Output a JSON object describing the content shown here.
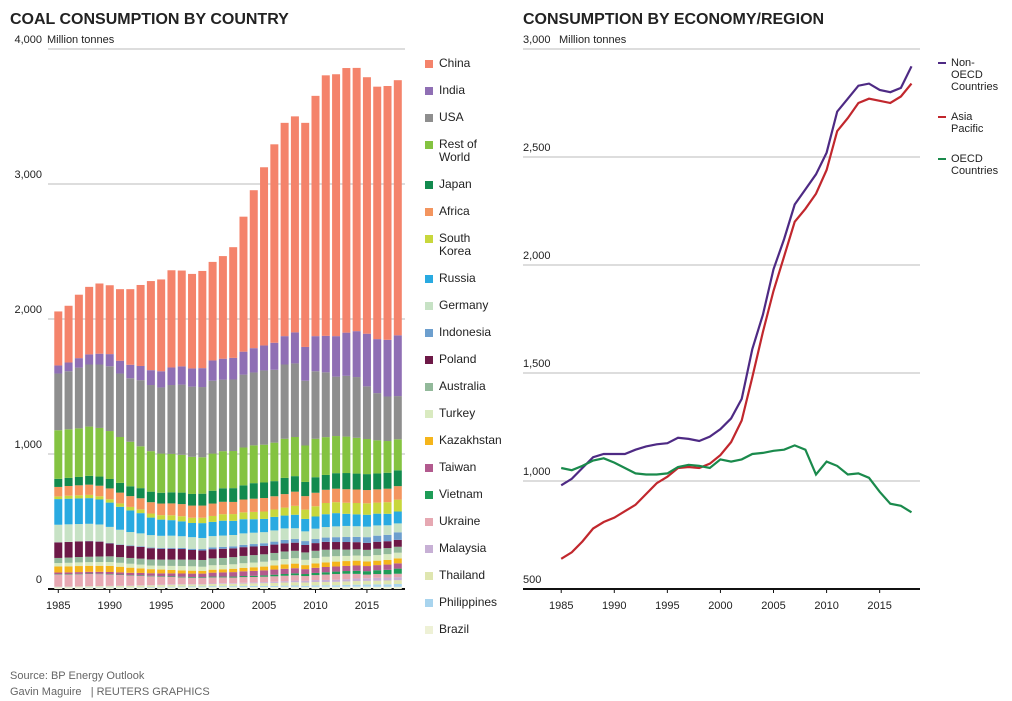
{
  "chart_data": [
    {
      "type": "bar",
      "stacked": true,
      "title": "COAL CONSUMPTION BY COUNTRY",
      "y_label": "Million tonnes",
      "x": [
        1985,
        1986,
        1987,
        1988,
        1989,
        1990,
        1991,
        1992,
        1993,
        1994,
        1995,
        1996,
        1997,
        1998,
        1999,
        2000,
        2001,
        2002,
        2003,
        2004,
        2005,
        2006,
        2007,
        2008,
        2009,
        2010,
        2011,
        2012,
        2013,
        2014,
        2015,
        2016,
        2017,
        2018
      ],
      "xlim": [
        1984,
        2018.7
      ],
      "xticks": [
        1985,
        1990,
        1995,
        2000,
        2005,
        2010,
        2015
      ],
      "ylim": [
        0,
        4000
      ],
      "yticks": [
        0,
        {
          "value": 1000,
          "label": "1,000"
        },
        {
          "value": 2000,
          "label": "2,000"
        },
        {
          "value": 3000,
          "label": "3,000"
        },
        {
          "value": 4000,
          "label": "4,000"
        }
      ],
      "grid": true,
      "series": [
        {
          "name": "China",
          "color": "#f4836b",
          "values": [
            400,
            420,
            470,
            500,
            520,
            510,
            530,
            560,
            600,
            660,
            680,
            720,
            710,
            700,
            720,
            730,
            760,
            820,
            1000,
            1170,
            1320,
            1470,
            1580,
            1600,
            1660,
            1780,
            1930,
            1940,
            1960,
            1950,
            1900,
            1870,
            1880,
            1890
          ]
        },
        {
          "name": "India",
          "color": "#8f6fb4",
          "values": [
            60,
            65,
            70,
            75,
            80,
            90,
            95,
            100,
            105,
            110,
            120,
            130,
            135,
            135,
            140,
            150,
            155,
            160,
            170,
            180,
            185,
            200,
            210,
            230,
            250,
            260,
            270,
            300,
            320,
            340,
            390,
            400,
            420,
            450
          ]
        },
        {
          "name": "USA",
          "color": "#8e8e8e",
          "values": [
            420,
            430,
            450,
            460,
            470,
            480,
            470,
            470,
            490,
            490,
            490,
            510,
            520,
            520,
            520,
            540,
            530,
            530,
            540,
            540,
            550,
            540,
            550,
            545,
            480,
            500,
            480,
            440,
            450,
            450,
            390,
            350,
            330,
            320
          ]
        },
        {
          "name": "Rest of World",
          "color": "#84c341",
          "values": [
            360,
            360,
            360,
            365,
            360,
            355,
            340,
            330,
            310,
            300,
            290,
            285,
            280,
            275,
            270,
            275,
            275,
            275,
            280,
            280,
            280,
            285,
            290,
            290,
            270,
            285,
            280,
            275,
            270,
            265,
            260,
            245,
            235,
            230
          ]
        },
        {
          "name": "Japan",
          "color": "#128a4e",
          "values": [
            60,
            60,
            62,
            65,
            68,
            70,
            72,
            73,
            75,
            78,
            80,
            82,
            85,
            86,
            88,
            95,
            100,
            102,
            105,
            115,
            115,
            112,
            120,
            115,
            105,
            115,
            110,
            115,
            120,
            118,
            118,
            118,
            118,
            117
          ]
        },
        {
          "name": "Africa",
          "color": "#f3955f",
          "values": [
            70,
            72,
            74,
            76,
            78,
            80,
            80,
            80,
            82,
            84,
            86,
            88,
            90,
            90,
            90,
            92,
            92,
            90,
            95,
            98,
            100,
            98,
            100,
            105,
            100,
            100,
            98,
            100,
            100,
            100,
            98,
            98,
            100,
            100
          ]
        },
        {
          "name": "South Korea",
          "color": "#c8d73c",
          "values": [
            20,
            22,
            23,
            24,
            24,
            25,
            25,
            26,
            28,
            30,
            33,
            36,
            38,
            39,
            40,
            44,
            48,
            50,
            51,
            54,
            55,
            55,
            59,
            66,
            69,
            76,
            83,
            81,
            82,
            84,
            85,
            82,
            86,
            88
          ]
        },
        {
          "name": "Russia",
          "color": "#29aae1",
          "values": [
            190,
            190,
            190,
            190,
            185,
            180,
            170,
            160,
            150,
            130,
            120,
            115,
            110,
            105,
            110,
            105,
            110,
            105,
            105,
            100,
            98,
            100,
            95,
            100,
            92,
            90,
            95,
            98,
            90,
            88,
            88,
            87,
            85,
            88
          ]
        },
        {
          "name": "Germany",
          "color": "#c7e2c5",
          "values": [
            130,
            130,
            128,
            127,
            125,
            120,
            110,
            100,
            95,
            92,
            90,
            90,
            87,
            86,
            82,
            84,
            84,
            84,
            85,
            84,
            82,
            83,
            85,
            80,
            72,
            77,
            78,
            80,
            82,
            79,
            78,
            76,
            71,
            66
          ]
        },
        {
          "name": "Indonesia",
          "color": "#6d9fce",
          "values": [
            1,
            1,
            1,
            2,
            2,
            3,
            3,
            4,
            5,
            5,
            6,
            7,
            8,
            9,
            11,
            13,
            14,
            15,
            17,
            18,
            20,
            22,
            26,
            27,
            29,
            30,
            32,
            36,
            37,
            39,
            42,
            45,
            47,
            56
          ]
        },
        {
          "name": "Poland",
          "color": "#6d1947",
          "values": [
            115,
            115,
            115,
            115,
            110,
            95,
            90,
            88,
            87,
            83,
            80,
            80,
            78,
            72,
            70,
            68,
            68,
            65,
            65,
            64,
            62,
            62,
            60,
            60,
            55,
            57,
            58,
            55,
            56,
            53,
            52,
            52,
            51,
            51
          ]
        },
        {
          "name": "Australia",
          "color": "#92b99a",
          "values": [
            38,
            39,
            40,
            40,
            41,
            42,
            42,
            43,
            44,
            45,
            46,
            47,
            48,
            49,
            50,
            51,
            52,
            53,
            54,
            55,
            55,
            55,
            56,
            55,
            55,
            54,
            52,
            50,
            47,
            46,
            47,
            47,
            45,
            44
          ]
        },
        {
          "name": "Turkey",
          "color": "#d9eac0",
          "values": [
            25,
            26,
            27,
            27,
            28,
            29,
            29,
            29,
            28,
            27,
            28,
            30,
            32,
            32,
            30,
            33,
            32,
            33,
            34,
            35,
            36,
            38,
            40,
            40,
            39,
            40,
            42,
            40,
            38,
            38,
            39,
            41,
            42,
            42
          ]
        },
        {
          "name": "Kazakhstan",
          "color": "#f5b51b",
          "values": [
            45,
            45,
            45,
            45,
            45,
            45,
            42,
            38,
            34,
            30,
            28,
            25,
            23,
            22,
            21,
            22,
            23,
            25,
            26,
            27,
            28,
            30,
            32,
            34,
            30,
            32,
            34,
            36,
            36,
            36,
            34,
            33,
            35,
            37
          ]
        },
        {
          "name": "Taiwan",
          "color": "#b25a8e",
          "values": [
            12,
            12,
            13,
            13,
            14,
            15,
            16,
            17,
            18,
            19,
            20,
            22,
            24,
            25,
            27,
            29,
            31,
            33,
            35,
            36,
            37,
            38,
            39,
            38,
            36,
            38,
            39,
            38,
            38,
            39,
            38,
            38,
            39,
            39
          ]
        },
        {
          "name": "Vietnam",
          "color": "#1e9c57",
          "values": [
            3,
            3,
            3,
            3,
            3,
            3,
            3,
            3,
            4,
            4,
            4,
            5,
            5,
            5,
            5,
            6,
            6,
            7,
            8,
            9,
            10,
            12,
            13,
            14,
            15,
            16,
            17,
            18,
            20,
            23,
            25,
            28,
            33,
            38
          ]
        },
        {
          "name": "Ukraine",
          "color": "#e6a8b2",
          "values": [
            90,
            90,
            90,
            90,
            88,
            85,
            80,
            75,
            70,
            65,
            60,
            55,
            50,
            48,
            46,
            45,
            43,
            42,
            42,
            40,
            40,
            40,
            40,
            40,
            35,
            37,
            40,
            42,
            40,
            34,
            27,
            28,
            24,
            25
          ]
        },
        {
          "name": "Malaysia",
          "color": "#c7b0d5",
          "values": [
            1,
            1,
            1,
            1,
            1,
            2,
            2,
            2,
            2,
            2,
            3,
            3,
            3,
            3,
            3,
            4,
            5,
            5,
            6,
            7,
            8,
            9,
            10,
            12,
            13,
            14,
            15,
            16,
            17,
            19,
            20,
            22,
            22,
            23
          ]
        },
        {
          "name": "Thailand",
          "color": "#dfe6b0",
          "values": [
            4,
            5,
            5,
            6,
            7,
            8,
            9,
            10,
            11,
            12,
            13,
            14,
            15,
            14,
            14,
            16,
            17,
            17,
            18,
            19,
            20,
            22,
            23,
            24,
            24,
            25,
            24,
            25,
            26,
            27,
            27,
            27,
            28,
            28
          ]
        },
        {
          "name": "Philippines",
          "color": "#a8d4ee",
          "values": [
            2,
            2,
            2,
            3,
            3,
            3,
            3,
            3,
            3,
            4,
            4,
            5,
            5,
            6,
            6,
            7,
            7,
            7,
            8,
            8,
            8,
            8,
            9,
            10,
            10,
            11,
            11,
            12,
            13,
            15,
            16,
            18,
            19,
            21
          ]
        },
        {
          "name": "Brazil",
          "color": "#eef1d6",
          "values": [
            10,
            10,
            11,
            11,
            11,
            10,
            10,
            10,
            11,
            11,
            12,
            12,
            13,
            13,
            13,
            14,
            14,
            14,
            14,
            15,
            15,
            15,
            16,
            16,
            14,
            16,
            17,
            16,
            17,
            17,
            17,
            16,
            16,
            16
          ]
        }
      ],
      "source": "Source: BP Energy Outlook",
      "credit": "Gavin Maguire   | REUTERS GRAPHICS"
    },
    {
      "type": "line",
      "title": "CONSUMPTION BY ECONOMY/REGION",
      "y_label": "Million tonnes",
      "x": [
        1985,
        1986,
        1987,
        1988,
        1989,
        1990,
        1991,
        1992,
        1993,
        1994,
        1995,
        1996,
        1997,
        1998,
        1999,
        2000,
        2001,
        2002,
        2003,
        2004,
        2005,
        2006,
        2007,
        2008,
        2009,
        2010,
        2011,
        2012,
        2013,
        2014,
        2015,
        2016,
        2017,
        2018
      ],
      "xlim": [
        1981.4,
        2018.8
      ],
      "xticks": [
        1985,
        1990,
        1995,
        2000,
        2005,
        2010,
        2015
      ],
      "ylim": [
        500,
        3000
      ],
      "yticks": [
        500,
        {
          "value": 1000,
          "label": "1,000"
        },
        {
          "value": 1500,
          "label": "1,500"
        },
        {
          "value": 2000,
          "label": "2,000"
        },
        {
          "value": 2500,
          "label": "2,500"
        },
        {
          "value": 3000,
          "label": "3,000"
        }
      ],
      "grid": true,
      "series": [
        {
          "name": "Non-OECD Countries",
          "color": "#4e2a84",
          "values": [
            980,
            1010,
            1060,
            1110,
            1125,
            1125,
            1125,
            1145,
            1160,
            1170,
            1175,
            1200,
            1195,
            1185,
            1205,
            1240,
            1290,
            1380,
            1610,
            1770,
            1980,
            2120,
            2280,
            2350,
            2420,
            2520,
            2710,
            2770,
            2830,
            2840,
            2810,
            2800,
            2820,
            2920
          ]
        },
        {
          "name": "Asia Pacific",
          "color": "#c1272d",
          "values": [
            640,
            670,
            720,
            780,
            810,
            830,
            860,
            890,
            940,
            990,
            1020,
            1060,
            1065,
            1060,
            1080,
            1120,
            1180,
            1280,
            1480,
            1690,
            1880,
            2040,
            2200,
            2260,
            2330,
            2440,
            2620,
            2680,
            2750,
            2770,
            2760,
            2750,
            2780,
            2840
          ]
        },
        {
          "name": "OECD Countries",
          "color": "#1a8a4c",
          "values": [
            1060,
            1050,
            1070,
            1095,
            1105,
            1085,
            1060,
            1035,
            1030,
            1030,
            1035,
            1065,
            1075,
            1070,
            1060,
            1100,
            1090,
            1100,
            1125,
            1130,
            1140,
            1145,
            1165,
            1145,
            1030,
            1090,
            1070,
            1030,
            1035,
            1015,
            950,
            895,
            885,
            855
          ]
        }
      ]
    }
  ]
}
